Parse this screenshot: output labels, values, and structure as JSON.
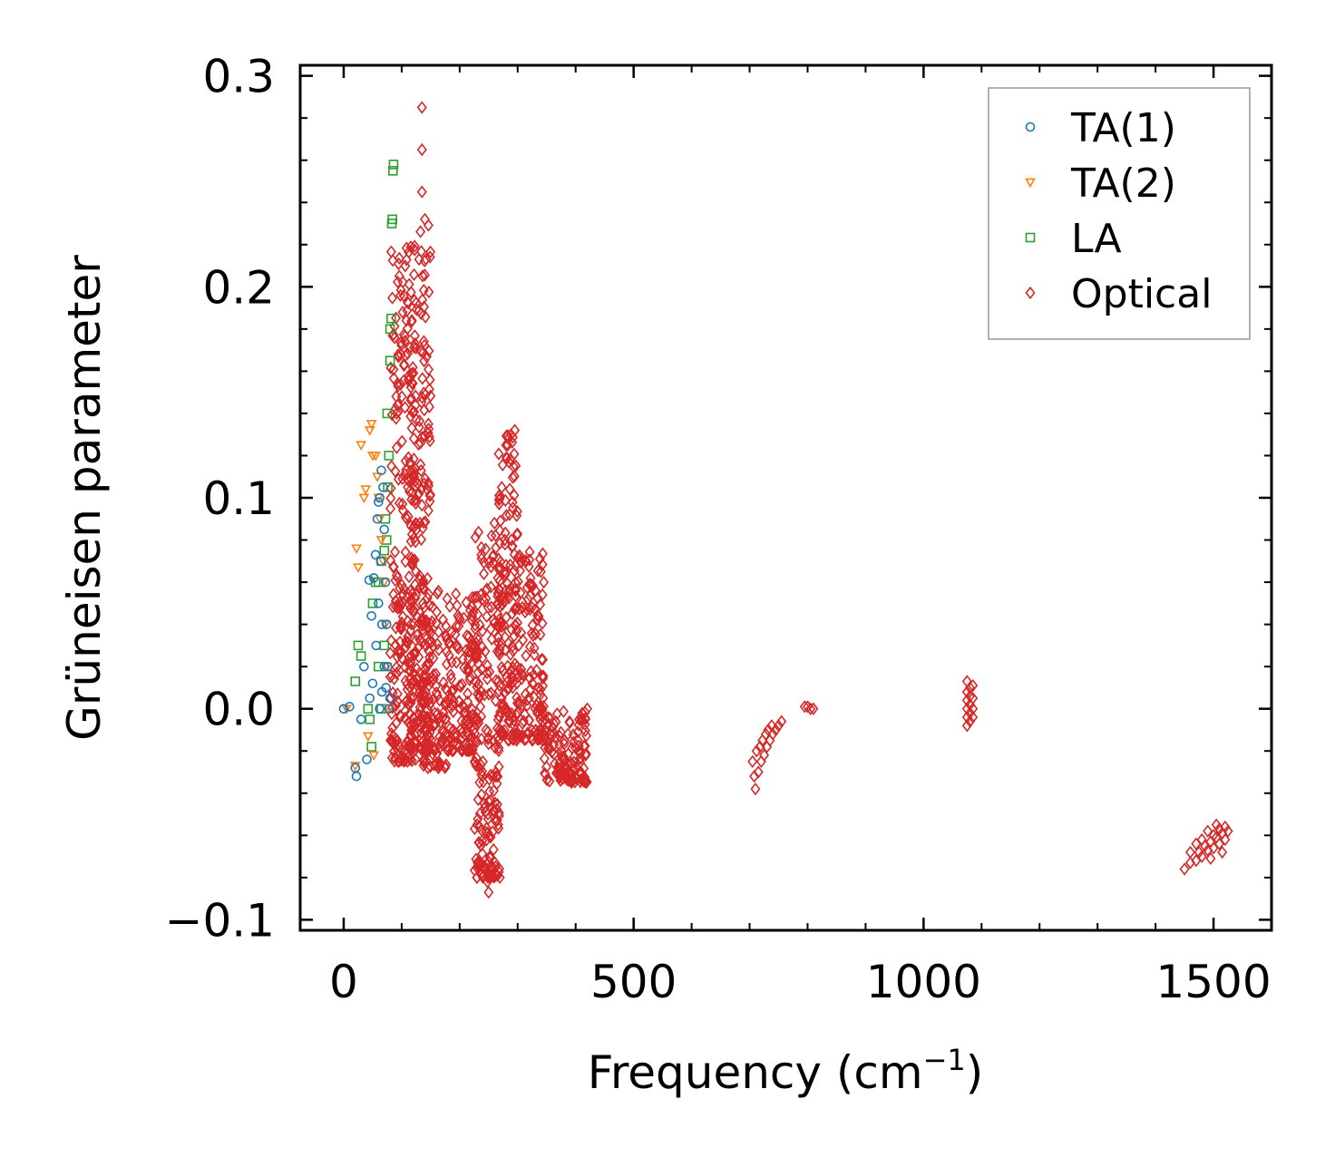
{
  "chart_data": {
    "type": "scatter",
    "title": "",
    "xlabel": "Frequency (cm",
    "xlabel_sup": "−1",
    "xlabel_close": ")",
    "ylabel": "Grüneisen parameter",
    "xlim": [
      -75,
      1600
    ],
    "ylim": [
      -0.105,
      0.305
    ],
    "x_ticks": [
      0,
      500,
      1000,
      1500
    ],
    "x_tick_labels": [
      "0",
      "500",
      "1000",
      "1500"
    ],
    "y_ticks": [
      -0.1,
      0.0,
      0.1,
      0.2,
      0.3
    ],
    "y_tick_labels": [
      "−0.1",
      "0.0",
      "0.1",
      "0.2",
      "0.3"
    ],
    "grid": false,
    "legend_position": "top-right",
    "series": [
      {
        "name": "TA(1)",
        "color": "#1f77b4",
        "marker": "circle",
        "points": [
          [
            0,
            0.0
          ],
          [
            10,
            0.001
          ],
          [
            20,
            -0.028
          ],
          [
            22,
            -0.032
          ],
          [
            30,
            -0.005
          ],
          [
            35,
            0.02
          ],
          [
            40,
            -0.024
          ],
          [
            44,
            0.061
          ],
          [
            48,
            0.044
          ],
          [
            52,
            0.062
          ],
          [
            55,
            0.073
          ],
          [
            58,
            0.09
          ],
          [
            60,
            0.098
          ],
          [
            62,
            0.1
          ],
          [
            65,
            0.113
          ],
          [
            68,
            0.105
          ],
          [
            70,
            0.085
          ],
          [
            72,
            0.06
          ],
          [
            74,
            0.04
          ],
          [
            76,
            0.02
          ],
          [
            78,
            0.0
          ],
          [
            80,
            0.005
          ],
          [
            56,
            0.03
          ],
          [
            60,
            0.05
          ],
          [
            64,
            0.07
          ],
          [
            66,
            0.04
          ],
          [
            70,
            0.02
          ],
          [
            73,
            0.01
          ],
          [
            62,
            0.0
          ],
          [
            66,
            0.008
          ],
          [
            50,
            0.012
          ],
          [
            45,
            0.005
          ]
        ]
      },
      {
        "name": "TA(2)",
        "color": "#ff7f0e",
        "marker": "triangle-down",
        "points": [
          [
            5,
            0.0
          ],
          [
            20,
            -0.027
          ],
          [
            30,
            0.125
          ],
          [
            35,
            0.1
          ],
          [
            38,
            0.104
          ],
          [
            42,
            -0.013
          ],
          [
            45,
            0.132
          ],
          [
            48,
            0.135
          ],
          [
            50,
            0.12
          ],
          [
            52,
            -0.022
          ],
          [
            55,
            0.12
          ],
          [
            58,
            0.11
          ],
          [
            60,
            0.1
          ],
          [
            62,
            0.09
          ],
          [
            65,
            0.08
          ],
          [
            68,
            0.07
          ],
          [
            70,
            0.06
          ],
          [
            72,
            0.04
          ],
          [
            75,
            0.02
          ],
          [
            78,
            0.0
          ],
          [
            22,
            0.076
          ],
          [
            25,
            0.067
          ]
        ]
      },
      {
        "name": "LA",
        "color": "#2ca02c",
        "marker": "square",
        "points": [
          [
            20,
            0.013
          ],
          [
            25,
            0.03
          ],
          [
            30,
            0.025
          ],
          [
            42,
            0.0
          ],
          [
            45,
            -0.005
          ],
          [
            48,
            -0.018
          ],
          [
            50,
            0.05
          ],
          [
            55,
            0.06
          ],
          [
            60,
            0.06
          ],
          [
            65,
            0.07
          ],
          [
            70,
            0.075
          ],
          [
            72,
            0.09
          ],
          [
            75,
            0.14
          ],
          [
            80,
            0.165
          ],
          [
            82,
            0.185
          ],
          [
            84,
            0.232
          ],
          [
            86,
            0.258
          ],
          [
            85,
            0.255
          ],
          [
            83,
            0.23
          ],
          [
            80,
            0.18
          ],
          [
            78,
            0.12
          ],
          [
            76,
            0.105
          ],
          [
            74,
            0.08
          ],
          [
            70,
            0.03
          ],
          [
            65,
            0.0
          ],
          [
            60,
            0.02
          ]
        ]
      },
      {
        "name": "Optical",
        "color": "#d62728",
        "marker": "diamond",
        "clusters": [
          {
            "x_range": [
              80,
              125
            ],
            "y_range": [
              -0.025,
              0.22
            ],
            "count": 260
          },
          {
            "x_range": [
              115,
              150
            ],
            "y_range": [
              -0.02,
              0.23
            ],
            "count": 220
          },
          {
            "x_range": [
              135,
              180
            ],
            "y_range": [
              -0.028,
              0.06
            ],
            "count": 120
          },
          {
            "x_range": [
              180,
              230
            ],
            "y_range": [
              -0.02,
              0.055
            ],
            "count": 140
          },
          {
            "x_range": [
              225,
              270
            ],
            "y_range": [
              -0.08,
              0.085
            ],
            "count": 200
          },
          {
            "x_range": [
              265,
              300
            ],
            "y_range": [
              -0.015,
              0.13
            ],
            "count": 160
          },
          {
            "x_range": [
              295,
              345
            ],
            "y_range": [
              -0.015,
              0.075
            ],
            "count": 140
          },
          {
            "x_range": [
              345,
              420
            ],
            "y_range": [
              -0.035,
              0.0
            ],
            "count": 120
          }
        ],
        "points": [
          [
            135,
            0.285
          ],
          [
            135,
            0.265
          ],
          [
            135,
            0.245
          ],
          [
            140,
            0.232
          ],
          [
            130,
            0.213
          ],
          [
            250,
            -0.087
          ],
          [
            248,
            -0.082
          ],
          [
            252,
            -0.07
          ],
          [
            420,
            0.0
          ],
          [
            410,
            -0.005
          ],
          [
            400,
            -0.033
          ],
          [
            390,
            -0.03
          ],
          [
            340,
            0.065
          ],
          [
            345,
            0.06
          ],
          [
            295,
            0.132
          ],
          [
            280,
            0.125
          ],
          [
            260,
            0.088
          ],
          [
            255,
            0.082
          ],
          [
            705,
            -0.025
          ],
          [
            710,
            -0.038
          ],
          [
            715,
            -0.03
          ],
          [
            720,
            -0.025
          ],
          [
            725,
            -0.022
          ],
          [
            730,
            -0.018
          ],
          [
            735,
            -0.015
          ],
          [
            740,
            -0.012
          ],
          [
            745,
            -0.01
          ],
          [
            750,
            -0.008
          ],
          [
            755,
            -0.006
          ],
          [
            712,
            -0.02
          ],
          [
            708,
            -0.032
          ],
          [
            718,
            -0.018
          ],
          [
            722,
            -0.015
          ],
          [
            728,
            -0.012
          ],
          [
            732,
            -0.01
          ],
          [
            738,
            -0.008
          ],
          [
            795,
            0.001
          ],
          [
            800,
            0.001
          ],
          [
            805,
            0.0
          ],
          [
            810,
            0.0
          ],
          [
            1075,
            -0.008
          ],
          [
            1075,
            -0.004
          ],
          [
            1075,
            0.0
          ],
          [
            1075,
            0.004
          ],
          [
            1075,
            0.008
          ],
          [
            1075,
            0.013
          ],
          [
            1080,
            -0.006
          ],
          [
            1080,
            -0.002
          ],
          [
            1080,
            0.002
          ],
          [
            1080,
            0.006
          ],
          [
            1080,
            0.01
          ],
          [
            1085,
            -0.004
          ],
          [
            1085,
            0.0
          ],
          [
            1085,
            0.005
          ],
          [
            1085,
            0.011
          ],
          [
            1450,
            -0.076
          ],
          [
            1460,
            -0.073
          ],
          [
            1470,
            -0.072
          ],
          [
            1475,
            -0.068
          ],
          [
            1480,
            -0.07
          ],
          [
            1485,
            -0.065
          ],
          [
            1490,
            -0.067
          ],
          [
            1495,
            -0.063
          ],
          [
            1500,
            -0.066
          ],
          [
            1505,
            -0.061
          ],
          [
            1510,
            -0.064
          ],
          [
            1515,
            -0.059
          ],
          [
            1520,
            -0.062
          ],
          [
            1525,
            -0.058
          ],
          [
            1490,
            -0.058
          ],
          [
            1500,
            -0.06
          ],
          [
            1510,
            -0.057
          ],
          [
            1520,
            -0.056
          ],
          [
            1470,
            -0.064
          ],
          [
            1480,
            -0.062
          ],
          [
            1460,
            -0.068
          ],
          [
            1495,
            -0.071
          ],
          [
            1515,
            -0.068
          ],
          [
            1505,
            -0.055
          ]
        ]
      }
    ]
  }
}
